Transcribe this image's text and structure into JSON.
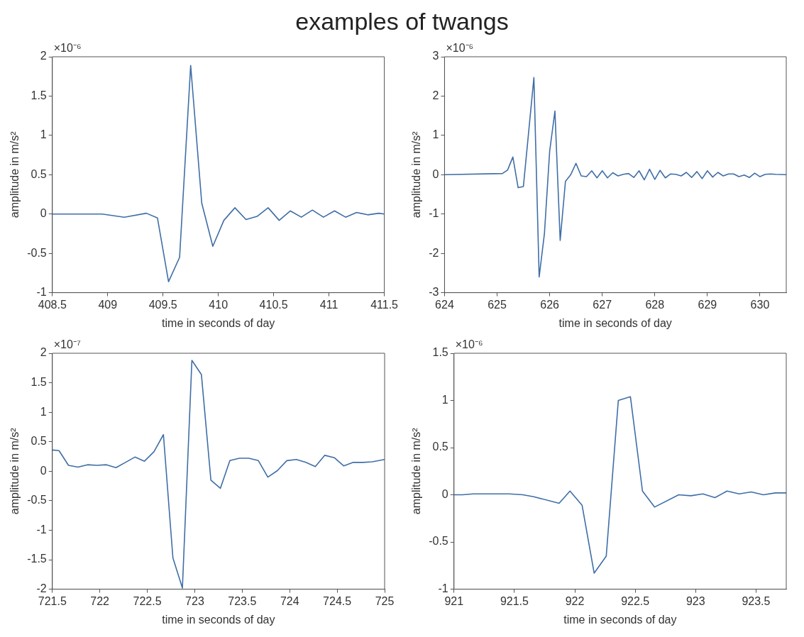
{
  "chart_data": [
    {
      "type": "line",
      "title": "examples of twangs",
      "xlabel": "time in seconds of day",
      "ylabel": "amplitude in m/s²",
      "annotations": [
        "×10⁻⁶"
      ],
      "color": "#3f6ea6",
      "marker": "none",
      "line_style": "solid",
      "x": [
        408.5,
        408.85,
        408.95,
        409.15,
        409.35,
        409.45,
        409.55,
        409.65,
        409.75,
        409.85,
        409.95,
        410.05,
        410.15,
        410.25,
        410.35,
        410.45,
        410.55,
        410.65,
        410.75,
        410.85,
        410.95,
        411.05,
        411.15,
        411.25,
        411.35,
        411.45,
        411.5
      ],
      "values": [
        0,
        0,
        0,
        -0.04,
        0.01,
        -0.05,
        -0.86,
        -0.55,
        1.89,
        0.14,
        -0.41,
        -0.08,
        0.08,
        -0.07,
        -0.03,
        0.08,
        -0.08,
        0.04,
        -0.04,
        0.05,
        -0.04,
        0.04,
        -0.04,
        0.02,
        -0.01,
        0.01,
        0
      ],
      "xlim": [
        408.5,
        411.5
      ],
      "xticks": [
        408.5,
        409,
        409.5,
        410,
        410.5,
        411,
        411.5
      ],
      "ylim": [
        -1,
        2
      ],
      "yticks": [
        -1,
        -0.5,
        0,
        0.5,
        1,
        1.5,
        2
      ]
    },
    {
      "type": "line",
      "xlabel": "time in seconds of day",
      "ylabel": "amplitude in m/s²",
      "annotations": [
        "×10⁻⁶"
      ],
      "color": "#3f6ea6",
      "marker": "none",
      "line_style": "solid",
      "x": [
        624,
        625.1,
        625.2,
        625.3,
        625.4,
        625.5,
        625.7,
        625.8,
        625.9,
        626.0,
        626.1,
        626.2,
        626.3,
        626.4,
        626.5,
        626.6,
        626.7,
        626.8,
        626.9,
        627.0,
        627.1,
        627.2,
        627.3,
        627.4,
        627.5,
        627.6,
        627.7,
        627.8,
        627.9,
        628.0,
        628.1,
        628.2,
        628.3,
        628.4,
        628.5,
        628.6,
        628.7,
        628.8,
        628.9,
        629.0,
        629.1,
        629.2,
        629.3,
        629.4,
        629.5,
        629.6,
        629.7,
        629.8,
        629.9,
        630.0,
        630.1,
        630.2,
        630.3,
        630.5
      ],
      "values": [
        0,
        0.03,
        0.12,
        0.45,
        -0.33,
        -0.3,
        2.47,
        -2.6,
        -1.5,
        0.6,
        1.62,
        -1.67,
        -0.17,
        0,
        0.29,
        -0.03,
        -0.05,
        0.1,
        -0.08,
        0.1,
        -0.08,
        0.05,
        -0.03,
        0.01,
        0.03,
        -0.07,
        0.1,
        -0.13,
        0.14,
        -0.12,
        0.11,
        -0.08,
        0.02,
        0.01,
        -0.03,
        0.06,
        -0.07,
        0.08,
        -0.1,
        0.1,
        -0.06,
        0.06,
        -0.03,
        0.02,
        0.02,
        -0.05,
        -0.01,
        -0.07,
        0.04,
        -0.05,
        0.01,
        0.02,
        0.01,
        0
      ],
      "xlim": [
        624,
        630.5
      ],
      "xticks": [
        624,
        625,
        626,
        627,
        628,
        629,
        630
      ],
      "ylim": [
        -3,
        3
      ],
      "yticks": [
        -3,
        -2,
        -1,
        0,
        1,
        2,
        3
      ]
    },
    {
      "type": "line",
      "xlabel": "time in seconds of day",
      "ylabel": "amplitude in m/s²",
      "annotations": [
        "×10⁻⁷"
      ],
      "color": "#3f6ea6",
      "marker": "none",
      "line_style": "solid",
      "x": [
        721.5,
        721.57,
        721.67,
        721.77,
        721.87,
        721.97,
        722.07,
        722.17,
        722.27,
        722.37,
        722.47,
        722.57,
        722.67,
        722.77,
        722.87,
        722.97,
        723.07,
        723.17,
        723.27,
        723.37,
        723.47,
        723.57,
        723.67,
        723.77,
        723.87,
        723.97,
        724.07,
        724.17,
        724.27,
        724.37,
        724.47,
        724.57,
        724.67,
        724.77,
        724.87,
        725
      ],
      "values": [
        0.36,
        0.35,
        0.1,
        0.07,
        0.11,
        0.1,
        0.11,
        0.06,
        0.15,
        0.24,
        0.17,
        0.33,
        0.62,
        -1.47,
        -1.98,
        1.88,
        1.64,
        -0.15,
        -0.29,
        0.18,
        0.22,
        0.22,
        0.18,
        -0.1,
        0.01,
        0.18,
        0.2,
        0.15,
        0.08,
        0.27,
        0.23,
        0.09,
        0.15,
        0.15,
        0.16,
        0.2
      ],
      "xlim": [
        721.5,
        725
      ],
      "xticks": [
        721.5,
        722,
        722.5,
        723,
        723.5,
        724,
        724.5,
        725
      ],
      "ylim": [
        -2,
        2
      ],
      "yticks": [
        -2,
        -1.5,
        -1,
        -0.5,
        0,
        0.5,
        1,
        1.5,
        2
      ]
    },
    {
      "type": "line",
      "xlabel": "time in seconds of day",
      "ylabel": "amplitude in m/s²",
      "annotations": [
        "×10⁻⁶"
      ],
      "color": "#3f6ea6",
      "marker": "none",
      "line_style": "solid",
      "x": [
        921,
        921.07,
        921.16,
        921.46,
        921.57,
        921.66,
        921.87,
        921.96,
        922.06,
        922.16,
        922.26,
        922.36,
        922.46,
        922.56,
        922.66,
        922.86,
        922.96,
        923.06,
        923.16,
        923.26,
        923.36,
        923.46,
        923.56,
        923.66,
        923.75
      ],
      "values": [
        0,
        0,
        0.01,
        0.01,
        0,
        -0.02,
        -0.09,
        0.04,
        -0.11,
        -0.83,
        -0.65,
        1.0,
        1.04,
        0.04,
        -0.13,
        0,
        -0.01,
        0.01,
        -0.03,
        0.04,
        0.01,
        0.03,
        0,
        0.02,
        0.02
      ],
      "xlim": [
        921,
        923.75
      ],
      "xticks": [
        921,
        921.5,
        922,
        922.5,
        923,
        923.5
      ],
      "ylim": [
        -1,
        1.5
      ],
      "yticks": [
        -1,
        -0.5,
        0,
        0.5,
        1,
        1.5
      ]
    }
  ]
}
